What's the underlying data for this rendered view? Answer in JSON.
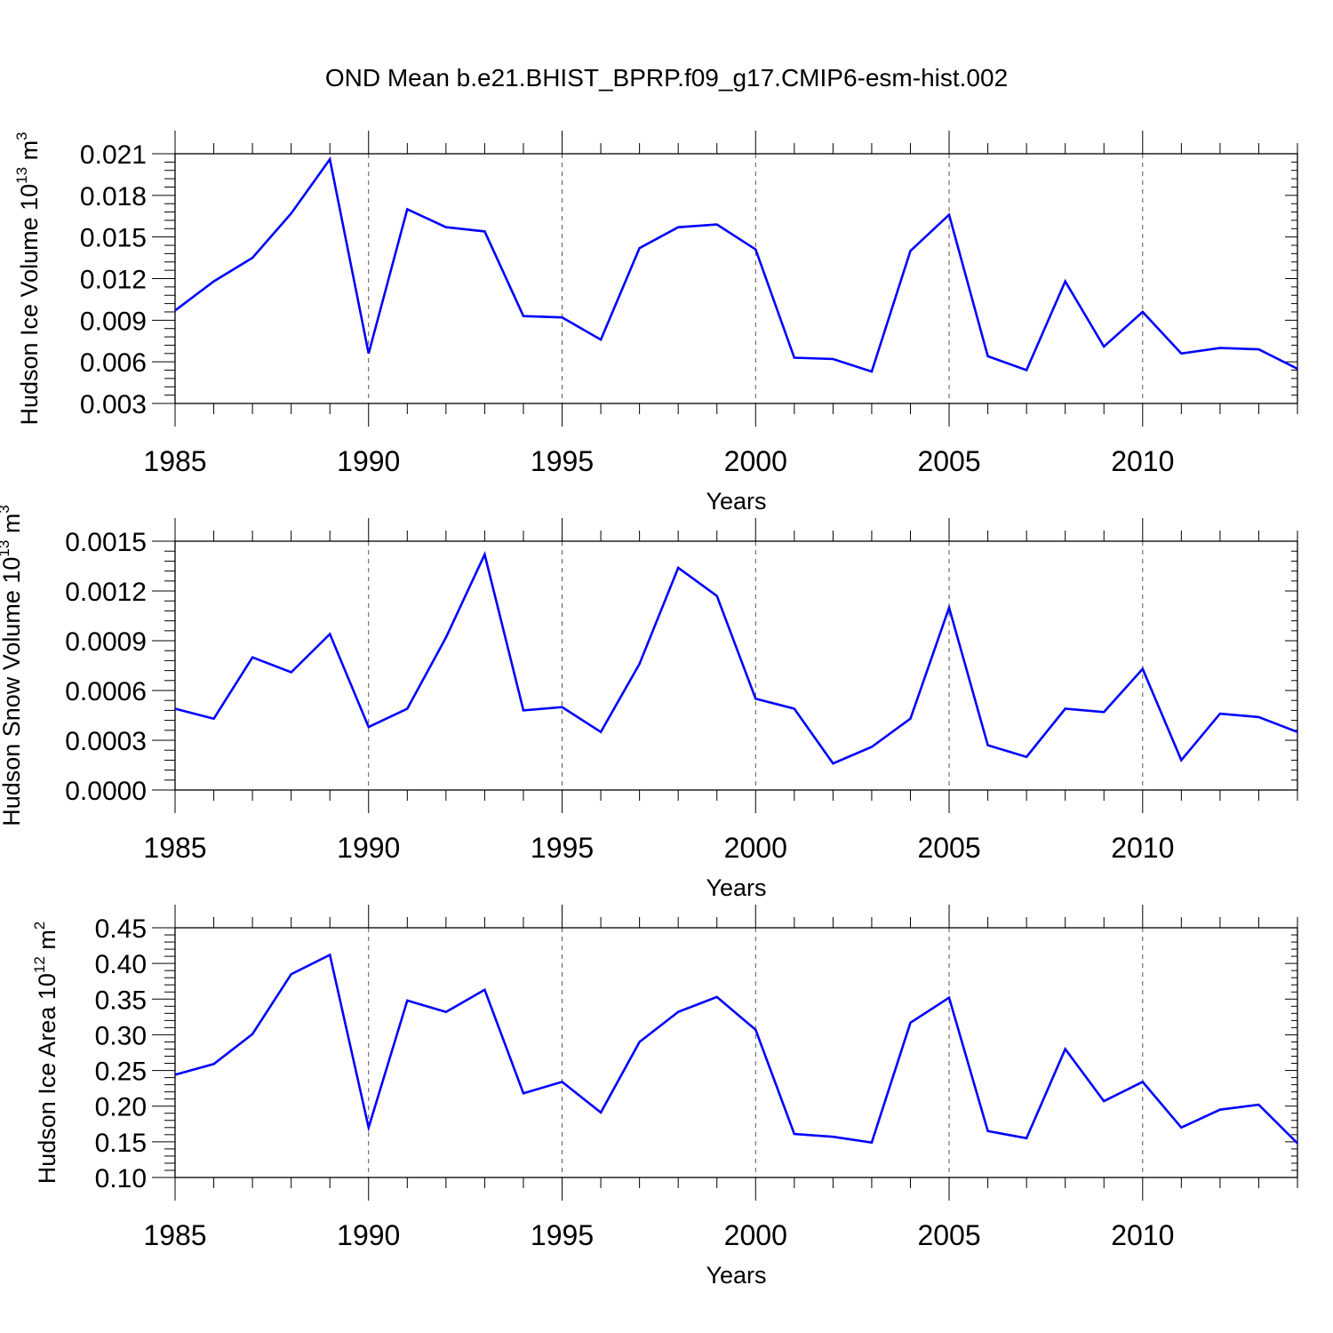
{
  "title": "OND Mean b.e21.BHIST_BPRP.f09_g17.CMIP6-esm-hist.002",
  "colors": {
    "line": "#0000ff",
    "axis": "#000000",
    "grid": "#555555"
  },
  "chart_data": [
    {
      "type": "line",
      "ylabel": "Hudson Ice Volume 10",
      "ylabel_exp": "13",
      "ylabel_unit": "m",
      "ylabel_unit_exp": "3",
      "xlabel": "Years",
      "xlim": [
        1985,
        2014
      ],
      "ylim": [
        0.003,
        0.021
      ],
      "yticks": [
        0.003,
        0.006,
        0.009,
        0.012,
        0.015,
        0.018,
        0.021
      ],
      "ytick_labels": [
        "0.003",
        "0.006",
        "0.009",
        "0.012",
        "0.015",
        "0.018",
        "0.021"
      ],
      "xticks": [
        1985,
        1990,
        1995,
        2000,
        2005,
        2010
      ],
      "xtick_labels": [
        "1985",
        "1990",
        "1995",
        "2000",
        "2005",
        "2010"
      ],
      "grid": "vertical dashed at 1990, 1995, 2000, 2005, 2010",
      "x": [
        1985,
        1986,
        1987,
        1988,
        1989,
        1990,
        1991,
        1992,
        1993,
        1994,
        1995,
        1996,
        1997,
        1998,
        1999,
        2000,
        2001,
        2002,
        2003,
        2004,
        2005,
        2006,
        2007,
        2008,
        2009,
        2010,
        2011,
        2012,
        2013,
        2014
      ],
      "y": [
        0.0097,
        0.0118,
        0.0135,
        0.0167,
        0.0206,
        0.0066,
        0.017,
        0.0157,
        0.0154,
        0.0093,
        0.0092,
        0.0076,
        0.0142,
        0.0157,
        0.0159,
        0.0141,
        0.0063,
        0.0062,
        0.0053,
        0.014,
        0.0166,
        0.0064,
        0.0054,
        0.0118,
        0.0071,
        0.0096,
        0.0066,
        0.007,
        0.0069,
        0.0055
      ]
    },
    {
      "type": "line",
      "ylabel": "Hudson Snow Volume 10",
      "ylabel_exp": "13",
      "ylabel_unit": "m",
      "ylabel_unit_exp": "3",
      "xlabel": "Years",
      "xlim": [
        1985,
        2014
      ],
      "ylim": [
        0.0,
        0.0015
      ],
      "yticks": [
        0.0,
        0.0003,
        0.0006,
        0.0009,
        0.0012,
        0.0015
      ],
      "ytick_labels": [
        "0.0000",
        "0.0003",
        "0.0006",
        "0.0009",
        "0.0012",
        "0.0015"
      ],
      "xticks": [
        1985,
        1990,
        1995,
        2000,
        2005,
        2010
      ],
      "xtick_labels": [
        "1985",
        "1990",
        "1995",
        "2000",
        "2005",
        "2010"
      ],
      "grid": "vertical dashed at 1990, 1995, 2000, 2005, 2010",
      "x": [
        1985,
        1986,
        1987,
        1988,
        1989,
        1990,
        1991,
        1992,
        1993,
        1994,
        1995,
        1996,
        1997,
        1998,
        1999,
        2000,
        2001,
        2002,
        2003,
        2004,
        2005,
        2006,
        2007,
        2008,
        2009,
        2010,
        2011,
        2012,
        2013,
        2014
      ],
      "y": [
        0.00049,
        0.00043,
        0.0008,
        0.00071,
        0.00094,
        0.00038,
        0.00049,
        0.00092,
        0.00142,
        0.00048,
        0.0005,
        0.00035,
        0.00076,
        0.00134,
        0.00117,
        0.00055,
        0.00049,
        0.00016,
        0.00026,
        0.00043,
        0.0011,
        0.00027,
        0.0002,
        0.00049,
        0.00047,
        0.00073,
        0.00018,
        0.00046,
        0.00044,
        0.00035
      ]
    },
    {
      "type": "line",
      "ylabel": "Hudson Ice Area 10",
      "ylabel_exp": "12",
      "ylabel_unit": "m",
      "ylabel_unit_exp": "2",
      "xlabel": "Years",
      "xlim": [
        1985,
        2014
      ],
      "ylim": [
        0.1,
        0.45
      ],
      "yticks": [
        0.1,
        0.15,
        0.2,
        0.25,
        0.3,
        0.35,
        0.4,
        0.45
      ],
      "ytick_labels": [
        "0.10",
        "0.15",
        "0.20",
        "0.25",
        "0.30",
        "0.35",
        "0.40",
        "0.45"
      ],
      "xticks": [
        1985,
        1990,
        1995,
        2000,
        2005,
        2010
      ],
      "xtick_labels": [
        "1985",
        "1990",
        "1995",
        "2000",
        "2005",
        "2010"
      ],
      "grid": "vertical dashed at 1990, 1995, 2000, 2005, 2010",
      "x": [
        1985,
        1986,
        1987,
        1988,
        1989,
        1990,
        1991,
        1992,
        1993,
        1994,
        1995,
        1996,
        1997,
        1998,
        1999,
        2000,
        2001,
        2002,
        2003,
        2004,
        2005,
        2006,
        2007,
        2008,
        2009,
        2010,
        2011,
        2012,
        2013,
        2014
      ],
      "y": [
        0.244,
        0.259,
        0.301,
        0.385,
        0.412,
        0.17,
        0.348,
        0.332,
        0.363,
        0.218,
        0.234,
        0.191,
        0.29,
        0.332,
        0.353,
        0.307,
        0.161,
        0.157,
        0.149,
        0.317,
        0.352,
        0.165,
        0.155,
        0.28,
        0.207,
        0.234,
        0.17,
        0.195,
        0.202,
        0.148
      ]
    }
  ]
}
